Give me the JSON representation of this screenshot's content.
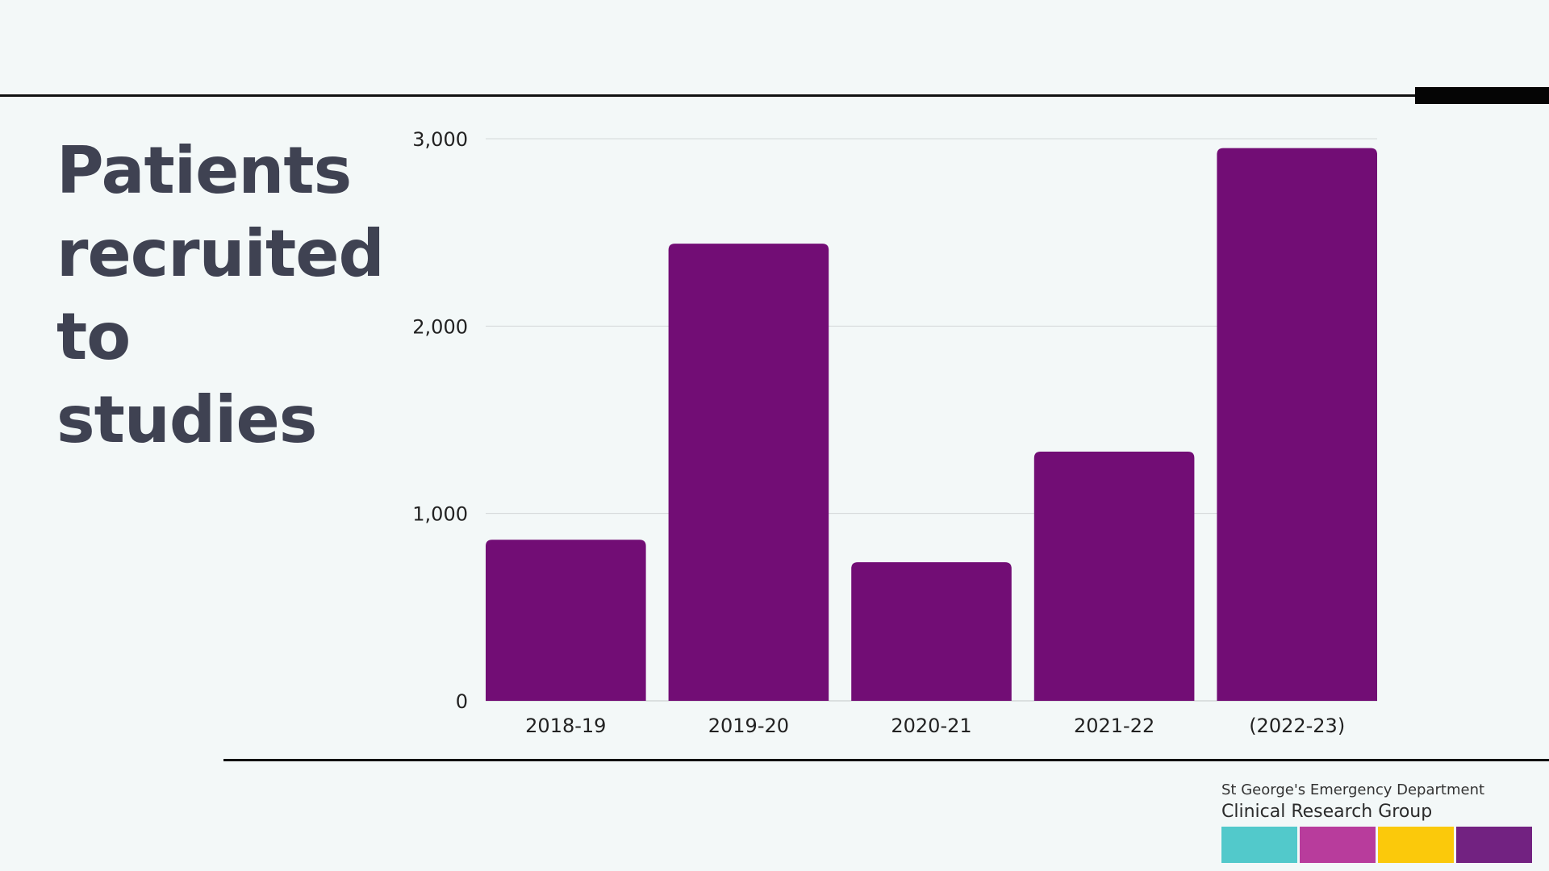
{
  "title_lines": [
    "Patients",
    "recruited",
    "to studies"
  ],
  "org": {
    "line1": "St George's Emergency Department",
    "line2": "Clinical Research Group",
    "brand_colors": [
      "#52c9cb",
      "#b83c9c",
      "#fbc90b",
      "#722281"
    ]
  },
  "colors": {
    "bar": "#720d75",
    "title": "#3f4252",
    "grid": "#d3d7d8",
    "tick_text": "#222222"
  },
  "chart_data": {
    "type": "bar",
    "categories": [
      "2018-19",
      "2019-20",
      "2020-21",
      "2021-22",
      "(2022-23)"
    ],
    "values": [
      860,
      2440,
      740,
      1330,
      2950
    ],
    "ylim": [
      0,
      3000
    ],
    "yticks": [
      0,
      1000,
      2000,
      3000
    ],
    "ytick_labels": [
      "0",
      "1,000",
      "2,000",
      "3,000"
    ],
    "grid": true,
    "xlabel": "",
    "ylabel": ""
  }
}
